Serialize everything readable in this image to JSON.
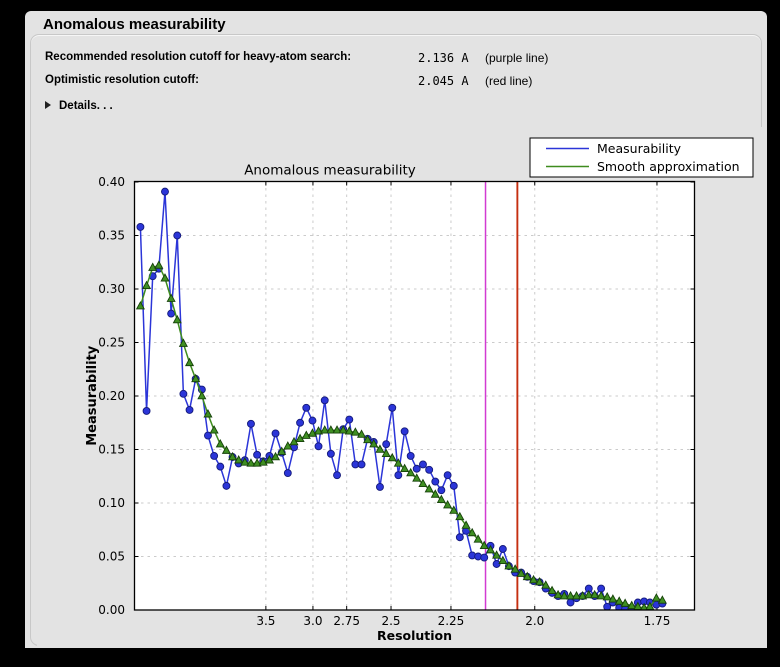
{
  "window": {
    "title": "Anomalous measurability"
  },
  "info": {
    "rows": [
      {
        "label": "Recommended resolution cutoff for heavy-atom search:",
        "value": "2.136 A",
        "note": "(purple line)"
      },
      {
        "label": "Optimistic resolution cutoff:",
        "value": "2.045 A",
        "note": "(red line)"
      }
    ],
    "details_label": "Details. . ."
  },
  "chart_data": {
    "type": "line",
    "title": "Anomalous measurability",
    "xlabel": "Resolution",
    "ylabel": "Measurability",
    "x_axis_transform": "1/d^2",
    "x_tick_labels": [
      "3.5",
      "3.0",
      "2.75",
      "2.5",
      "2.25",
      "2.0",
      "1.75"
    ],
    "x_ticks": [
      3.5,
      3.0,
      2.75,
      2.5,
      2.25,
      2.0,
      1.75
    ],
    "y_ticks": [
      0.0,
      0.05,
      0.1,
      0.15,
      0.2,
      0.25,
      0.3,
      0.35,
      0.4
    ],
    "ylim": [
      0.0,
      0.4
    ],
    "grid": true,
    "legend_position": "upper right",
    "resolution_A": [
      18.03,
      12.02,
      9.637,
      8.272,
      7.36,
      6.695,
      6.184,
      5.774,
      5.436,
      5.151,
      4.906,
      4.694,
      4.507,
      4.34,
      4.191,
      4.056,
      3.934,
      3.822,
      3.719,
      3.624,
      3.536,
      3.453,
      3.377,
      3.305,
      3.238,
      3.174,
      3.115,
      3.058,
      3.004,
      2.954,
      2.905,
      2.859,
      2.815,
      2.773,
      2.733,
      2.695,
      2.658,
      2.623,
      2.589,
      2.556,
      2.524,
      2.494,
      2.465,
      2.436,
      2.409,
      2.383,
      2.357,
      2.332,
      2.308,
      2.285,
      2.262,
      2.24,
      2.219,
      2.198,
      2.178,
      2.159,
      2.14,
      2.121,
      2.103,
      2.085,
      2.068,
      2.051,
      2.035,
      2.019,
      2.003,
      1.988,
      1.973,
      1.958,
      1.944,
      1.93,
      1.916,
      1.903,
      1.89,
      1.877,
      1.865,
      1.852,
      1.84,
      1.829,
      1.817,
      1.806,
      1.794,
      1.783,
      1.772,
      1.762,
      1.751,
      1.741
    ],
    "series": [
      {
        "name": "Measurability",
        "color": "#2b35d8",
        "marker": "circle",
        "values": [
          0.358,
          0.186,
          0.312,
          0.319,
          0.391,
          0.277,
          0.35,
          0.202,
          0.187,
          0.216,
          0.206,
          0.163,
          0.144,
          0.134,
          0.116,
          0.143,
          0.137,
          0.14,
          0.174,
          0.145,
          0.139,
          0.144,
          0.165,
          0.147,
          0.128,
          0.152,
          0.175,
          0.189,
          0.177,
          0.153,
          0.196,
          0.146,
          0.126,
          0.169,
          0.178,
          0.136,
          0.136,
          0.16,
          0.157,
          0.115,
          0.155,
          0.189,
          0.126,
          0.167,
          0.144,
          0.132,
          0.136,
          0.131,
          0.12,
          0.112,
          0.126,
          0.116,
          0.068,
          0.074,
          0.051,
          0.05,
          0.049,
          0.06,
          0.043,
          0.057,
          0.041,
          0.035,
          0.035,
          0.031,
          0.027,
          0.026,
          0.02,
          0.016,
          0.013,
          0.015,
          0.007,
          0.011,
          0.013,
          0.02,
          0.013,
          0.02,
          0.003,
          0.007,
          0.002,
          0.001,
          0.001,
          0.007,
          0.008,
          0.007,
          0.005,
          0.006
        ]
      },
      {
        "name": "Smooth approximation",
        "color": "#3f8c1e",
        "marker": "triangle",
        "values": [
          0.284,
          0.303,
          0.32,
          0.322,
          0.31,
          0.291,
          0.271,
          0.249,
          0.231,
          0.216,
          0.2,
          0.183,
          0.168,
          0.155,
          0.149,
          0.143,
          0.14,
          0.138,
          0.137,
          0.137,
          0.138,
          0.14,
          0.143,
          0.148,
          0.153,
          0.157,
          0.16,
          0.163,
          0.165,
          0.167,
          0.168,
          0.168,
          0.168,
          0.168,
          0.167,
          0.166,
          0.164,
          0.159,
          0.155,
          0.15,
          0.146,
          0.142,
          0.137,
          0.132,
          0.128,
          0.123,
          0.118,
          0.113,
          0.108,
          0.103,
          0.098,
          0.093,
          0.087,
          0.079,
          0.072,
          0.066,
          0.06,
          0.056,
          0.051,
          0.046,
          0.041,
          0.038,
          0.034,
          0.031,
          0.028,
          0.026,
          0.023,
          0.018,
          0.014,
          0.013,
          0.013,
          0.013,
          0.013,
          0.014,
          0.014,
          0.013,
          0.012,
          0.01,
          0.008,
          0.006,
          0.004,
          0.003,
          0.002,
          0.003,
          0.011,
          0.009
        ]
      }
    ],
    "vlines": [
      {
        "resolution": 2.136,
        "color": "#d23bd2",
        "label": "purple line"
      },
      {
        "resolution": 2.045,
        "color": "#c52f10",
        "label": "red line"
      }
    ]
  }
}
